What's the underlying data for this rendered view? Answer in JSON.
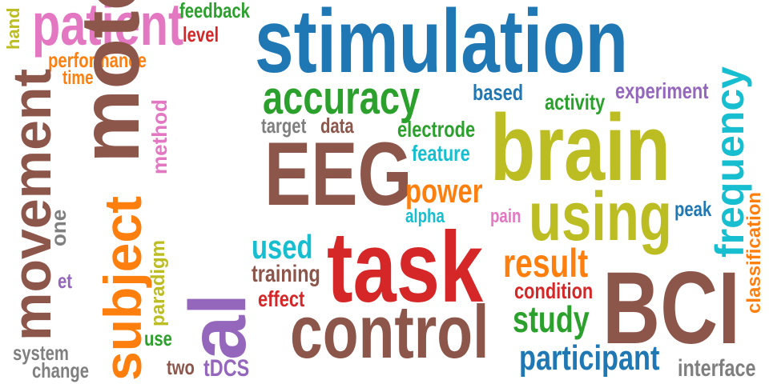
{
  "word_cloud": {
    "words": [
      {
        "text": "stimulation",
        "color": "#1f77b4"
      },
      {
        "text": "brain",
        "color": "#bcbd22"
      },
      {
        "text": "task",
        "color": "#d62728"
      },
      {
        "text": "EEG",
        "color": "#8c564b"
      },
      {
        "text": "BCI",
        "color": "#8c564b"
      },
      {
        "text": "control",
        "color": "#8c564b"
      },
      {
        "text": "patient",
        "color": "#e377c2"
      },
      {
        "text": "movement",
        "color": "#8c564b"
      },
      {
        "text": "motor",
        "color": "#8c564b"
      },
      {
        "text": "al",
        "color": "#9467bd"
      },
      {
        "text": "subject",
        "color": "#ff7f0e"
      },
      {
        "text": "using",
        "color": "#bcbd22"
      },
      {
        "text": "accuracy",
        "color": "#2ca02c"
      },
      {
        "text": "frequency",
        "color": "#17becf"
      },
      {
        "text": "participant",
        "color": "#1f77b4"
      },
      {
        "text": "result",
        "color": "#ff7f0e"
      },
      {
        "text": "power",
        "color": "#ff7f0e"
      },
      {
        "text": "study",
        "color": "#2ca02c"
      },
      {
        "text": "used",
        "color": "#17becf"
      },
      {
        "text": "feedback",
        "color": "#2ca02c"
      },
      {
        "text": "level",
        "color": "#d62728"
      },
      {
        "text": "performance",
        "color": "#ff7f0e"
      },
      {
        "text": "time",
        "color": "#ff7f0e"
      },
      {
        "text": "hand",
        "color": "#bcbd22"
      },
      {
        "text": "based",
        "color": "#1f77b4"
      },
      {
        "text": "experiment",
        "color": "#9467bd"
      },
      {
        "text": "activity",
        "color": "#2ca02c"
      },
      {
        "text": "target",
        "color": "#7f7f7f"
      },
      {
        "text": "data",
        "color": "#8c564b"
      },
      {
        "text": "electrode",
        "color": "#2ca02c"
      },
      {
        "text": "feature",
        "color": "#17becf"
      },
      {
        "text": "method",
        "color": "#e377c2"
      },
      {
        "text": "alpha",
        "color": "#17becf"
      },
      {
        "text": "pain",
        "color": "#e377c2"
      },
      {
        "text": "peak",
        "color": "#1f77b4"
      },
      {
        "text": "classification",
        "color": "#ff7f0e"
      },
      {
        "text": "one",
        "color": "#7f7f7f"
      },
      {
        "text": "et",
        "color": "#9467bd"
      },
      {
        "text": "paradigm",
        "color": "#bcbd22"
      },
      {
        "text": "training",
        "color": "#8c564b"
      },
      {
        "text": "effect",
        "color": "#d62728"
      },
      {
        "text": "condition",
        "color": "#d62728"
      },
      {
        "text": "use",
        "color": "#2ca02c"
      },
      {
        "text": "system",
        "color": "#7f7f7f"
      },
      {
        "text": "change",
        "color": "#7f7f7f"
      },
      {
        "text": "two",
        "color": "#8c564b"
      },
      {
        "text": "tDCS",
        "color": "#9467bd"
      },
      {
        "text": "interface",
        "color": "#7f7f7f"
      }
    ]
  }
}
